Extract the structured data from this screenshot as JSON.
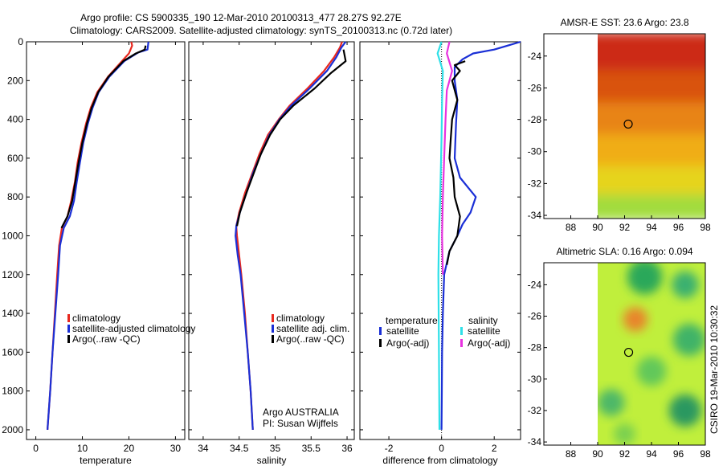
{
  "header": {
    "title_line1": "Argo profile: CS 5900335_190 12-Mar-2010 20100313_477 28.27S 92.27E",
    "title_line2": "Climatology: CARS2009. Satellite-adjusted climatology: synTS_20100313.nc (0.72d later)"
  },
  "side_label": "CSIRO 19-Mar-2010 10:30:32",
  "colors": {
    "red": "#e8281e",
    "blue": "#1a2fd6",
    "black": "#000000",
    "cyan": "#2fe0e8",
    "magenta": "#e832e0"
  },
  "chart_data": [
    {
      "id": "temperature",
      "type": "line",
      "xlabel": "temperature",
      "ylabel": "",
      "xlim": [
        -2,
        32
      ],
      "ylim": [
        2050,
        0
      ],
      "xticks": [
        0,
        10,
        20,
        30
      ],
      "yticks": [
        0,
        200,
        400,
        600,
        800,
        1000,
        1200,
        1400,
        1600,
        1800,
        2000
      ],
      "legend": [
        "climatology",
        "satellite-adjusted climatology",
        "Argo(..raw -QC)"
      ],
      "series": [
        {
          "name": "climatology",
          "color": "red",
          "points": [
            [
              20.5,
              0
            ],
            [
              20.7,
              20
            ],
            [
              20,
              60
            ],
            [
              18.5,
              100
            ],
            [
              15.5,
              180
            ],
            [
              13.2,
              260
            ],
            [
              11.8,
              340
            ],
            [
              10.8,
              420
            ],
            [
              9.8,
              520
            ],
            [
              9,
              620
            ],
            [
              8.4,
              720
            ],
            [
              7.6,
              820
            ],
            [
              6.8,
              900
            ],
            [
              5.6,
              960
            ],
            [
              5,
              1050
            ],
            [
              4.6,
              1200
            ],
            [
              4.1,
              1400
            ],
            [
              3.6,
              1600
            ],
            [
              3.1,
              1800
            ],
            [
              2.5,
              2000
            ]
          ]
        },
        {
          "name": "satellite-adjusted",
          "color": "blue",
          "points": [
            [
              24.2,
              0
            ],
            [
              24,
              40
            ],
            [
              22,
              55
            ],
            [
              19,
              100
            ],
            [
              15.8,
              180
            ],
            [
              13.5,
              260
            ],
            [
              12.2,
              340
            ],
            [
              11.2,
              420
            ],
            [
              10.2,
              520
            ],
            [
              9.5,
              620
            ],
            [
              8.8,
              720
            ],
            [
              8.2,
              820
            ],
            [
              7.3,
              900
            ],
            [
              6,
              960
            ],
            [
              5.2,
              1050
            ],
            [
              4.8,
              1200
            ],
            [
              4.2,
              1400
            ],
            [
              3.6,
              1600
            ],
            [
              3.1,
              1800
            ],
            [
              2.5,
              2000
            ]
          ]
        },
        {
          "name": "argo",
          "color": "black",
          "points": [
            [
              23.6,
              20
            ],
            [
              23.4,
              40
            ],
            [
              21.5,
              60
            ],
            [
              18.8,
              100
            ],
            [
              15.6,
              180
            ],
            [
              13.4,
              260
            ],
            [
              12,
              340
            ],
            [
              11,
              420
            ],
            [
              10,
              520
            ],
            [
              9.2,
              620
            ],
            [
              8.5,
              720
            ],
            [
              7.8,
              820
            ],
            [
              6.8,
              900
            ],
            [
              5.5,
              960
            ]
          ]
        }
      ]
    },
    {
      "id": "salinity",
      "type": "line",
      "xlabel": "salinity",
      "ylabel": "",
      "xlim": [
        33.8,
        36.1
      ],
      "xticks": [
        34,
        34.5,
        35,
        35.5,
        36
      ],
      "legend": [
        "climatology",
        "satellite adj. clim.",
        "Argo(..raw -QC)"
      ],
      "credit": [
        "Argo AUSTRALIA",
        "PI: Susan Wijffels"
      ],
      "series": [
        {
          "name": "climatology",
          "color": "red",
          "points": [
            [
              35.93,
              0
            ],
            [
              35.9,
              30
            ],
            [
              35.82,
              80
            ],
            [
              35.68,
              150
            ],
            [
              35.45,
              240
            ],
            [
              35.2,
              330
            ],
            [
              35.05,
              400
            ],
            [
              34.9,
              480
            ],
            [
              34.78,
              580
            ],
            [
              34.68,
              680
            ],
            [
              34.58,
              780
            ],
            [
              34.5,
              880
            ],
            [
              34.46,
              950
            ],
            [
              34.47,
              1000
            ],
            [
              34.5,
              1100
            ],
            [
              34.53,
              1200
            ],
            [
              34.58,
              1400
            ],
            [
              34.62,
              1600
            ],
            [
              34.66,
              1800
            ],
            [
              34.69,
              2000
            ]
          ]
        },
        {
          "name": "satellite-adjusted",
          "color": "blue",
          "points": [
            [
              35.98,
              0
            ],
            [
              35.92,
              30
            ],
            [
              35.85,
              80
            ],
            [
              35.72,
              150
            ],
            [
              35.48,
              240
            ],
            [
              35.22,
              330
            ],
            [
              35.06,
              400
            ],
            [
              34.92,
              480
            ],
            [
              34.8,
              580
            ],
            [
              34.69,
              680
            ],
            [
              34.6,
              780
            ],
            [
              34.51,
              880
            ],
            [
              34.46,
              950
            ],
            [
              34.45,
              1000
            ],
            [
              34.48,
              1100
            ],
            [
              34.52,
              1200
            ],
            [
              34.57,
              1400
            ],
            [
              34.62,
              1600
            ],
            [
              34.66,
              1800
            ],
            [
              34.69,
              2000
            ]
          ]
        },
        {
          "name": "argo",
          "color": "black",
          "points": [
            [
              35.95,
              40
            ],
            [
              35.98,
              100
            ],
            [
              35.78,
              160
            ],
            [
              35.55,
              240
            ],
            [
              35.25,
              330
            ],
            [
              35.07,
              400
            ],
            [
              34.93,
              480
            ],
            [
              34.8,
              580
            ],
            [
              34.7,
              680
            ],
            [
              34.6,
              780
            ],
            [
              34.51,
              880
            ],
            [
              34.47,
              950
            ]
          ]
        }
      ]
    },
    {
      "id": "difference",
      "type": "line",
      "xlabel": "difference from climatology",
      "ylabel": "",
      "xlim": [
        -3.1,
        3
      ],
      "xticks": [
        -2,
        0,
        2
      ],
      "legend_title_left": "temperature",
      "legend_title_right": "salinity",
      "legend": [
        "satellite",
        "Argo(-adj)",
        "satellite",
        "Argo(-adj)"
      ],
      "series": [
        {
          "name": "temp-satellite",
          "color": "blue",
          "points": [
            [
              3,
              0
            ],
            [
              2,
              40
            ],
            [
              1.2,
              60
            ],
            [
              0.8,
              90
            ],
            [
              0.5,
              130
            ],
            [
              0.5,
              200
            ],
            [
              0.6,
              300
            ],
            [
              0.55,
              420
            ],
            [
              0.5,
              600
            ],
            [
              0.7,
              700
            ],
            [
              1.3,
              800
            ],
            [
              1.1,
              880
            ],
            [
              0.8,
              940
            ],
            [
              0.6,
              1000
            ],
            [
              0.3,
              1080
            ],
            [
              0.1,
              1200
            ],
            [
              0.05,
              1400
            ],
            [
              0.02,
              1600
            ],
            [
              0.01,
              1800
            ],
            [
              0,
              2000
            ]
          ]
        },
        {
          "name": "temp-argo",
          "color": "black",
          "points": [
            [
              0.9,
              100
            ],
            [
              0.5,
              120
            ],
            [
              0.7,
              150
            ],
            [
              0.4,
              200
            ],
            [
              0.6,
              300
            ],
            [
              0.4,
              400
            ],
            [
              0.35,
              500
            ],
            [
              0.3,
              600
            ],
            [
              0.45,
              700
            ],
            [
              0.5,
              800
            ],
            [
              0.7,
              900
            ],
            [
              0.6,
              1000
            ],
            [
              0.3,
              1080
            ],
            [
              0.2,
              1150
            ]
          ]
        },
        {
          "name": "sal-satellite",
          "color": "cyan",
          "points": [
            [
              0,
              0
            ],
            [
              -0.15,
              60
            ],
            [
              0.05,
              150
            ],
            [
              0.02,
              300
            ],
            [
              0,
              500
            ],
            [
              -0.05,
              800
            ],
            [
              -0.1,
              1000
            ],
            [
              -0.12,
              1200
            ],
            [
              -0.1,
              1600
            ],
            [
              -0.08,
              2000
            ]
          ]
        },
        {
          "name": "sal-argo",
          "color": "magenta",
          "points": [
            [
              0.3,
              0
            ],
            [
              0.2,
              60
            ],
            [
              0.4,
              150
            ],
            [
              0.2,
              250
            ],
            [
              0.15,
              400
            ],
            [
              0.1,
              600
            ],
            [
              0.05,
              800
            ],
            [
              0.02,
              1000
            ],
            [
              0.05,
              1200
            ]
          ]
        }
      ]
    },
    {
      "id": "sst-map",
      "type": "heatmap",
      "title": "AMSR-E SST: 23.6 Argo: 23.8",
      "xlim": [
        86,
        98
      ],
      "ylim": [
        -34.2,
        -22.6
      ],
      "xticks": [
        88,
        90,
        92,
        94,
        96,
        98
      ],
      "yticks": [
        -24,
        -26,
        -28,
        -30,
        -32,
        -34
      ],
      "data_extent_x": [
        90,
        98
      ],
      "float_position": [
        92.27,
        -28.27
      ],
      "bands": [
        {
          "y_from": -22.6,
          "y_to": -25,
          "color": "#cc2a12"
        },
        {
          "y_from": -25,
          "y_to": -27,
          "color": "#d9520f"
        },
        {
          "y_from": -27,
          "y_to": -29,
          "color": "#e88412"
        },
        {
          "y_from": -29,
          "y_to": -31,
          "color": "#f0ad18"
        },
        {
          "y_from": -31,
          "y_to": -32.8,
          "color": "#e6d41c"
        },
        {
          "y_from": -32.8,
          "y_to": -34.2,
          "color": "#a2dc3c"
        }
      ]
    },
    {
      "id": "sla-map",
      "type": "heatmap",
      "title": "Altimetric SLA: 0.16 Argo: 0.094",
      "xlim": [
        86,
        98
      ],
      "ylim": [
        -34.2,
        -22.6
      ],
      "xticks": [
        88,
        90,
        92,
        94,
        96,
        98
      ],
      "yticks": [
        -24,
        -26,
        -28,
        -30,
        -32,
        -34
      ],
      "data_extent_x": [
        90,
        98
      ],
      "float_position": [
        92.3,
        -28.3
      ],
      "base_color": "#c0ef3c",
      "blobs": [
        {
          "x": 93.5,
          "y": -23.5,
          "r": 1.3,
          "color": "#2aa85a"
        },
        {
          "x": 96.5,
          "y": -24,
          "r": 1.0,
          "color": "#3ab070"
        },
        {
          "x": 92.8,
          "y": -26.2,
          "r": 0.9,
          "color": "#e8852a"
        },
        {
          "x": 96.8,
          "y": -27.5,
          "r": 1.2,
          "color": "#3fb368"
        },
        {
          "x": 94,
          "y": -29.5,
          "r": 1.1,
          "color": "#62c85a"
        },
        {
          "x": 91,
          "y": -31.5,
          "r": 1.0,
          "color": "#4db868"
        },
        {
          "x": 96.5,
          "y": -32,
          "r": 1.2,
          "color": "#2a9860"
        },
        {
          "x": 92,
          "y": -33.5,
          "r": 0.8,
          "color": "#7ad050"
        }
      ]
    }
  ]
}
